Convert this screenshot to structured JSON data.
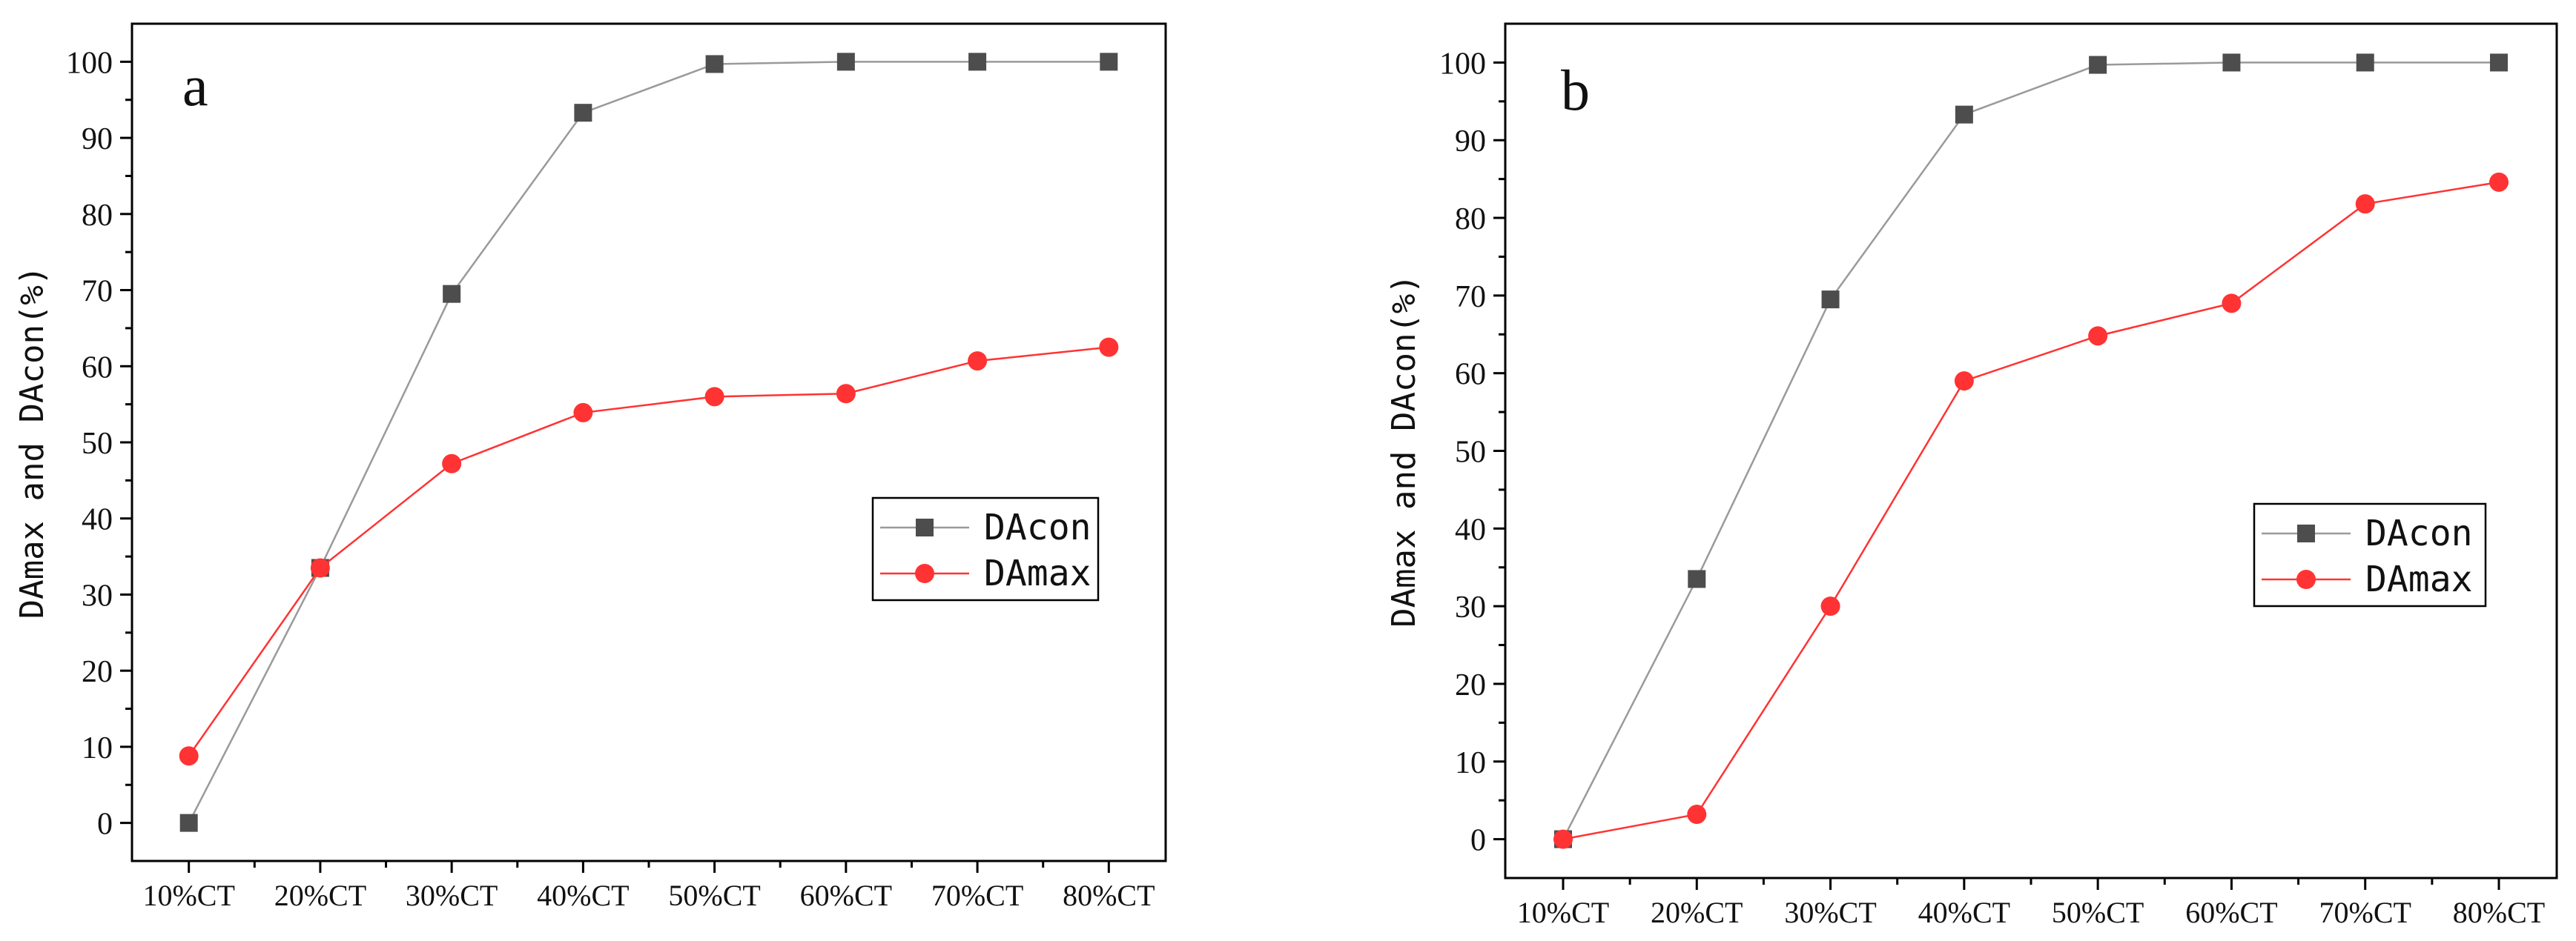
{
  "chart_data": [
    {
      "type": "line",
      "panel_label": "a",
      "categories": [
        "10%CT",
        "20%CT",
        "30%CT",
        "40%CT",
        "50%CT",
        "60%CT",
        "70%CT",
        "80%CT"
      ],
      "ylabel": "DAmax and DAcon(%)",
      "ylim": [
        -5,
        105
      ],
      "yticks": [
        0,
        10,
        20,
        30,
        40,
        50,
        60,
        70,
        80,
        90,
        100
      ],
      "grid": false,
      "legend": "center-right",
      "series": [
        {
          "name": "DAcon",
          "marker": "square",
          "color": "#4d4d4d",
          "line_color": "#9a9a9a",
          "values": [
            0,
            33.5,
            69.5,
            93.3,
            99.7,
            100,
            100,
            100
          ]
        },
        {
          "name": "DAmax",
          "marker": "circle",
          "color": "#ff3333",
          "line_color": "#ff3333",
          "values": [
            8.8,
            33.5,
            47.2,
            53.9,
            56.0,
            56.4,
            60.7,
            62.5
          ]
        }
      ]
    },
    {
      "type": "line",
      "panel_label": "b",
      "categories": [
        "10%CT",
        "20%CT",
        "30%CT",
        "40%CT",
        "50%CT",
        "60%CT",
        "70%CT",
        "80%CT"
      ],
      "ylabel": "DAmax and DAcon(%)",
      "ylim": [
        -5,
        105
      ],
      "yticks": [
        0,
        10,
        20,
        30,
        40,
        50,
        60,
        70,
        80,
        90,
        100
      ],
      "grid": false,
      "legend": "center-right",
      "series": [
        {
          "name": "DAcon",
          "marker": "square",
          "color": "#4d4d4d",
          "line_color": "#9a9a9a",
          "values": [
            0,
            33.5,
            69.5,
            93.3,
            99.7,
            100,
            100,
            100
          ]
        },
        {
          "name": "DAmax",
          "marker": "circle",
          "color": "#ff3333",
          "line_color": "#ff3333",
          "values": [
            0,
            3.2,
            30.0,
            59.0,
            64.8,
            69.0,
            81.8,
            84.6
          ]
        }
      ]
    }
  ]
}
